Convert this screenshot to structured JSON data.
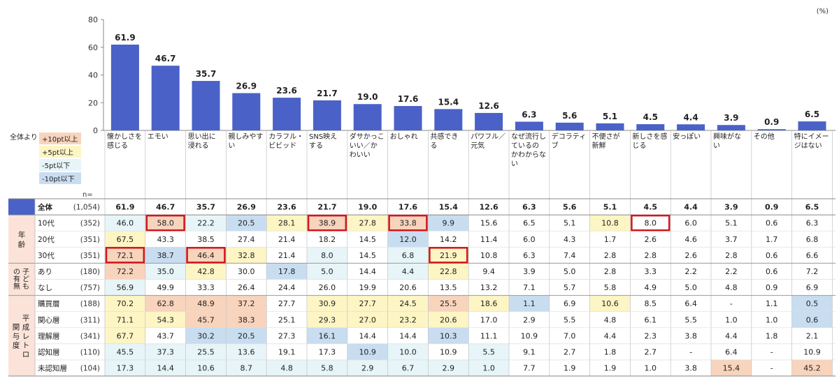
{
  "unit_note": "(%)",
  "legend": {
    "title": "全体より",
    "items": [
      {
        "label": "+10pt以上",
        "color": "#f8d4bd"
      },
      {
        "label": "+5pt以上",
        "color": "#fdf5c4"
      },
      {
        "label": "-5pt以下",
        "color": "#e7f5f8"
      },
      {
        "label": "-10pt以下",
        "color": "#c9ddf1"
      }
    ]
  },
  "n_label": "n=",
  "colors": {
    "bar": "#4a61c8",
    "header_blue": "#4a61c8",
    "side_pink": "#fbe3d9",
    "highlight_border": "#d0161c"
  },
  "chart_data": {
    "type": "bar",
    "ylim": [
      0,
      80
    ],
    "yticks": [
      0,
      20,
      40,
      60,
      80
    ],
    "categories": [
      "懐かしさを\n感じる",
      "エモい",
      "思い出に\n浸れる",
      "親しみやす\nい",
      "カラフル・\nビビッド",
      "SNS映え\nする",
      "ダサかっこ\nいい／か\nわいい",
      "おしゃれ",
      "共感でき\nる",
      "パワフル／\n元気",
      "なぜ流行し\nているの\nかわからな\nい",
      "デコラティ\nブ",
      "不便さが\n新鮮",
      "新しさを感\nじる",
      "安っぽい",
      "興味がな\nい",
      "その他",
      "特にイメー\nジはない"
    ],
    "values": [
      61.9,
      46.7,
      35.7,
      26.9,
      23.6,
      21.7,
      19.0,
      17.6,
      15.4,
      12.6,
      6.3,
      5.6,
      5.1,
      4.5,
      4.4,
      3.9,
      0.9,
      6.5
    ],
    "value_labels": [
      "61.9",
      "46.7",
      "35.7",
      "26.9",
      "23.6",
      "21.7",
      "19.0",
      "17.6",
      "15.4",
      "12.6",
      "6.3",
      "5.6",
      "5.1",
      "4.5",
      "4.4",
      "3.9",
      "0.9",
      "6.5"
    ]
  },
  "table": {
    "rows": [
      {
        "label": "全体",
        "n": "(1,054)",
        "values": [
          "61.9",
          "46.7",
          "35.7",
          "26.9",
          "23.6",
          "21.7",
          "19.0",
          "17.6",
          "15.4",
          "12.6",
          "6.3",
          "5.6",
          "5.1",
          "4.5",
          "4.4",
          "3.9",
          "0.9",
          "6.5"
        ],
        "shade": [
          0,
          0,
          0,
          0,
          0,
          0,
          0,
          0,
          0,
          0,
          0,
          0,
          0,
          0,
          0,
          0,
          0,
          0
        ],
        "boxed": []
      },
      {
        "label": "10代",
        "n": "(352)",
        "values": [
          "46.0",
          "58.0",
          "22.2",
          "20.5",
          "28.1",
          "38.9",
          "27.8",
          "33.8",
          "9.9",
          "15.6",
          "6.5",
          "5.1",
          "10.8",
          "8.0",
          "6.0",
          "5.1",
          "0.6",
          "6.3"
        ],
        "shade": [
          -2,
          2,
          -2,
          -3,
          1,
          2,
          1,
          2,
          -3,
          0,
          0,
          0,
          1,
          0,
          0,
          0,
          0,
          0
        ],
        "boxed": [
          1,
          5,
          7,
          13
        ]
      },
      {
        "label": "20代",
        "n": "(351)",
        "values": [
          "67.5",
          "43.3",
          "38.5",
          "27.4",
          "21.4",
          "18.2",
          "14.5",
          "12.0",
          "14.2",
          "11.4",
          "6.0",
          "4.3",
          "1.7",
          "2.6",
          "4.6",
          "3.7",
          "1.7",
          "6.8"
        ],
        "shade": [
          1,
          0,
          0,
          0,
          0,
          0,
          0,
          -3,
          0,
          0,
          0,
          0,
          0,
          0,
          0,
          0,
          0,
          0
        ],
        "boxed": []
      },
      {
        "label": "30代",
        "n": "(351)",
        "values": [
          "72.1",
          "38.7",
          "46.4",
          "32.8",
          "21.4",
          "8.0",
          "14.5",
          "6.8",
          "21.9",
          "10.8",
          "6.3",
          "7.4",
          "2.8",
          "2.8",
          "2.6",
          "2.8",
          "0.6",
          "6.6"
        ],
        "shade": [
          2,
          -3,
          2,
          1,
          0,
          -2,
          0,
          -2,
          1,
          0,
          0,
          0,
          0,
          0,
          0,
          0,
          0,
          0
        ],
        "boxed": [
          0,
          2,
          8
        ]
      },
      {
        "label": "あり",
        "n": "(180)",
        "values": [
          "72.2",
          "35.0",
          "42.8",
          "30.0",
          "17.8",
          "5.0",
          "14.4",
          "4.4",
          "22.8",
          "9.4",
          "3.9",
          "5.0",
          "2.8",
          "3.3",
          "2.2",
          "2.2",
          "0.6",
          "7.2"
        ],
        "shade": [
          2,
          -2,
          1,
          0,
          -3,
          -2,
          0,
          -2,
          1,
          0,
          0,
          0,
          0,
          0,
          0,
          0,
          0,
          0
        ],
        "boxed": []
      },
      {
        "label": "なし",
        "n": "(757)",
        "values": [
          "56.9",
          "49.9",
          "33.3",
          "26.4",
          "24.4",
          "26.0",
          "19.9",
          "20.6",
          "13.5",
          "13.2",
          "7.1",
          "5.7",
          "5.8",
          "4.9",
          "5.0",
          "4.8",
          "0.9",
          "6.9"
        ],
        "shade": [
          -2,
          0,
          0,
          0,
          0,
          0,
          0,
          0,
          0,
          0,
          0,
          0,
          0,
          0,
          0,
          0,
          0,
          0
        ],
        "boxed": []
      },
      {
        "label": "購買層",
        "n": "(188)",
        "values": [
          "70.2",
          "62.8",
          "48.9",
          "37.2",
          "27.7",
          "30.9",
          "27.7",
          "24.5",
          "25.5",
          "18.6",
          "1.1",
          "6.9",
          "10.6",
          "8.5",
          "6.4",
          "-",
          "1.1",
          "0.5"
        ],
        "shade": [
          1,
          2,
          2,
          2,
          0,
          1,
          1,
          1,
          2,
          1,
          -3,
          0,
          1,
          0,
          0,
          0,
          0,
          -3
        ],
        "boxed": []
      },
      {
        "label": "関心層",
        "n": "(311)",
        "values": [
          "71.1",
          "54.3",
          "45.7",
          "38.3",
          "25.1",
          "29.3",
          "27.0",
          "23.2",
          "20.6",
          "17.0",
          "2.9",
          "5.5",
          "4.8",
          "6.1",
          "5.5",
          "1.0",
          "1.0",
          "0.6"
        ],
        "shade": [
          1,
          1,
          2,
          2,
          0,
          1,
          1,
          1,
          1,
          0,
          0,
          0,
          0,
          0,
          0,
          0,
          0,
          -3
        ],
        "boxed": []
      },
      {
        "label": "理解層",
        "n": "(341)",
        "values": [
          "67.7",
          "43.7",
          "30.2",
          "20.5",
          "27.3",
          "16.1",
          "14.4",
          "14.4",
          "10.3",
          "11.1",
          "10.9",
          "7.0",
          "4.4",
          "2.3",
          "3.8",
          "4.4",
          "1.8",
          "2.1"
        ],
        "shade": [
          1,
          0,
          -3,
          -3,
          0,
          -3,
          0,
          0,
          -3,
          0,
          0,
          0,
          0,
          0,
          0,
          0,
          0,
          0
        ],
        "boxed": []
      },
      {
        "label": "認知層",
        "n": "(110)",
        "values": [
          "45.5",
          "37.3",
          "25.5",
          "13.6",
          "19.1",
          "17.3",
          "10.9",
          "10.0",
          "10.9",
          "5.5",
          "9.1",
          "2.7",
          "1.8",
          "2.7",
          "-",
          "6.4",
          "-",
          "10.9"
        ],
        "shade": [
          -2,
          -2,
          -2,
          -2,
          0,
          0,
          -3,
          -2,
          0,
          -2,
          0,
          0,
          0,
          0,
          0,
          0,
          0,
          0
        ],
        "boxed": []
      },
      {
        "label": "未認知層",
        "n": "(104)",
        "values": [
          "17.3",
          "14.4",
          "10.6",
          "8.7",
          "4.8",
          "5.8",
          "2.9",
          "6.7",
          "2.9",
          "1.0",
          "7.7",
          "1.9",
          "1.9",
          "1.0",
          "3.8",
          "15.4",
          "-",
          "45.2"
        ],
        "shade": [
          -2,
          -2,
          -2,
          -2,
          -2,
          -2,
          -2,
          -2,
          -2,
          -2,
          0,
          0,
          0,
          0,
          0,
          2,
          0,
          2
        ],
        "boxed": []
      }
    ],
    "groups": [
      {
        "label": "年\n齢"
      },
      {
        "label": "子\nど\nも\nの\n有\n無"
      },
      {
        "label": "平\n成\nレ\nト\nロ\n関\n与\n度"
      }
    ]
  }
}
